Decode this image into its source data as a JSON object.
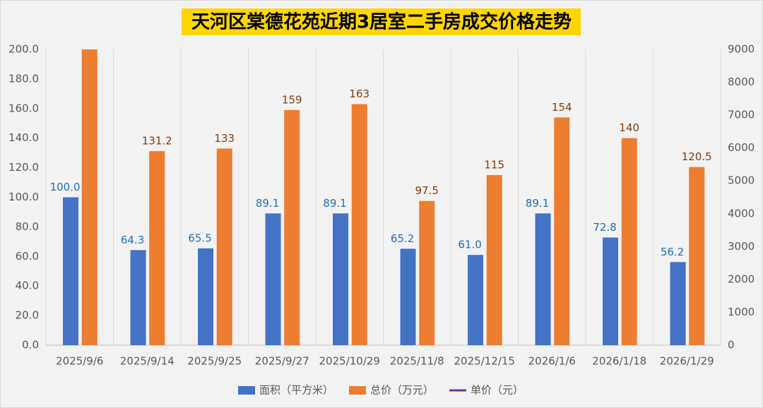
{
  "chart_data": {
    "type": "bar",
    "title": "天河区棠德花苑近期3居室二手房成交价格走势",
    "categories": [
      "2025/9/6",
      "2025/9/14",
      "2025/9/25",
      "2025/9/27",
      "2025/10/29",
      "2025/11/8",
      "2025/12/15",
      "2026/1/6",
      "2026/1/18",
      "2026/1/29"
    ],
    "series": [
      {
        "name": "面积（平方米）",
        "color": "#4472c4",
        "label_color": "#1f70b8",
        "values": [
          100,
          64.3,
          65.5,
          89.1,
          89.1,
          65.2,
          61,
          89.1,
          72.8,
          56.2
        ],
        "value_labels": [
          "100.0",
          "64.3",
          "65.5",
          "89.1",
          "89.1",
          "65.2",
          "61.0",
          "89.1",
          "72.8",
          "56.2"
        ]
      },
      {
        "name": "总价（万元）",
        "color": "#ed7d31",
        "label_color": "#843c0c",
        "values": [
          200,
          131.2,
          133,
          159,
          163,
          97.5,
          115,
          154,
          140,
          120.5
        ],
        "value_labels": [
          null,
          "131.2",
          "133",
          "159",
          "163",
          "97.5",
          "115",
          "154",
          "140",
          "120.5"
        ]
      },
      {
        "name": "单价（元）",
        "color": "#7030a0",
        "axis": "y2",
        "values": [
          null,
          null,
          null,
          null,
          null,
          null,
          null,
          null,
          null,
          null
        ]
      }
    ],
    "ylim": [
      0,
      200
    ],
    "yticks": [
      {
        "value": 0,
        "label": "0.0"
      },
      {
        "value": 20,
        "label": "20.0"
      },
      {
        "value": 40,
        "label": "40.0"
      },
      {
        "value": 60,
        "label": "60.0"
      },
      {
        "value": 80,
        "label": "80.0"
      },
      {
        "value": 100,
        "label": "100.0"
      },
      {
        "value": 120,
        "label": "120.0"
      },
      {
        "value": 140,
        "label": "140.0"
      },
      {
        "value": 160,
        "label": "160.0"
      },
      {
        "value": 180,
        "label": "180.0"
      },
      {
        "value": 200,
        "label": "200.0"
      }
    ],
    "y2lim": [
      0,
      9000
    ],
    "y2ticks": [
      0,
      1000,
      2000,
      3000,
      4000,
      5000,
      6000,
      7000,
      8000,
      9000
    ],
    "legend": "bottom"
  }
}
